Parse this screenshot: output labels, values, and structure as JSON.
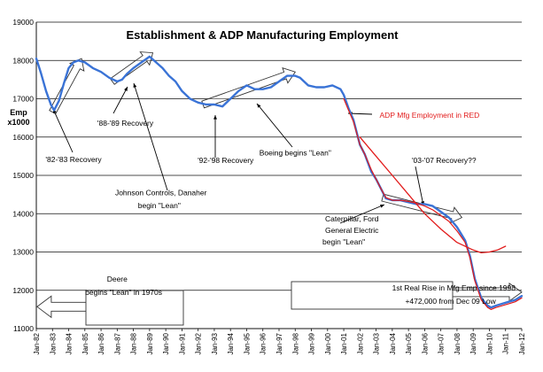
{
  "chart_data": {
    "type": "line",
    "title": "Establishment & ADP Manufacturing Employment",
    "xlabel": "",
    "ylabel": "Emp\nx1000",
    "ylim": [
      11000,
      19000
    ],
    "xlim": [
      1982.0,
      2012.0
    ],
    "yticks": [
      11000,
      12000,
      13000,
      14000,
      15000,
      16000,
      17000,
      18000,
      19000
    ],
    "xtick_labels": [
      "Jan-82",
      "Jan-83",
      "Jan-84",
      "Jan-85",
      "Jan-86",
      "Jan-87",
      "Jan-88",
      "Jan-89",
      "Jan-90",
      "Jan-91",
      "Jan-92",
      "Jan-93",
      "Jan-94",
      "Jan-95",
      "Jan-96",
      "Jan-97",
      "Jan-98",
      "Jan-99",
      "Jan-00",
      "Jan-01",
      "Jan-02",
      "Jan-03",
      "Jan-04",
      "Jan-05",
      "Jan-06",
      "Jan-07",
      "Jan-08",
      "Jan-09",
      "Jan-10",
      "Jan-11",
      "Jan-12"
    ],
    "grid": "horizontal",
    "series": [
      {
        "color": "#3a73d6",
        "points": [
          [
            1982.0,
            18050
          ],
          [
            1982.3,
            17650
          ],
          [
            1982.6,
            17200
          ],
          [
            1982.9,
            16850
          ],
          [
            1983.1,
            16700
          ],
          [
            1983.4,
            16950
          ],
          [
            1983.7,
            17400
          ],
          [
            1984.0,
            17800
          ],
          [
            1984.3,
            17950
          ],
          [
            1984.6,
            18000
          ],
          [
            1985.0,
            17950
          ],
          [
            1985.5,
            17800
          ],
          [
            1986.0,
            17700
          ],
          [
            1986.5,
            17550
          ],
          [
            1987.0,
            17450
          ],
          [
            1987.3,
            17500
          ],
          [
            1987.6,
            17650
          ],
          [
            1988.0,
            17800
          ],
          [
            1988.5,
            17950
          ],
          [
            1989.0,
            18100
          ],
          [
            1989.4,
            17950
          ],
          [
            1989.8,
            17800
          ],
          [
            1990.2,
            17600
          ],
          [
            1990.6,
            17450
          ],
          [
            1991.0,
            17200
          ],
          [
            1991.5,
            17000
          ],
          [
            1992.0,
            16900
          ],
          [
            1992.5,
            16850
          ],
          [
            1993.0,
            16850
          ],
          [
            1993.5,
            16800
          ],
          [
            1994.0,
            17000
          ],
          [
            1994.5,
            17200
          ],
          [
            1995.0,
            17350
          ],
          [
            1995.5,
            17250
          ],
          [
            1996.0,
            17250
          ],
          [
            1996.5,
            17300
          ],
          [
            1997.0,
            17450
          ],
          [
            1997.5,
            17600
          ],
          [
            1998.0,
            17600
          ],
          [
            1998.3,
            17550
          ],
          [
            1998.8,
            17350
          ],
          [
            1999.3,
            17300
          ],
          [
            1999.8,
            17300
          ],
          [
            2000.3,
            17350
          ],
          [
            2000.8,
            17250
          ],
          [
            2001.0,
            17100
          ],
          [
            2001.3,
            16750
          ],
          [
            2001.6,
            16450
          ],
          [
            2002.0,
            15800
          ],
          [
            2002.3,
            15550
          ],
          [
            2002.7,
            15100
          ],
          [
            2003.0,
            14900
          ],
          [
            2003.3,
            14650
          ],
          [
            2003.6,
            14400
          ],
          [
            2004.0,
            14350
          ],
          [
            2004.5,
            14350
          ],
          [
            2005.0,
            14300
          ],
          [
            2005.5,
            14250
          ],
          [
            2006.0,
            14250
          ],
          [
            2006.5,
            14200
          ],
          [
            2007.0,
            14050
          ],
          [
            2007.5,
            13900
          ],
          [
            2008.0,
            13650
          ],
          [
            2008.5,
            13300
          ],
          [
            2008.8,
            12900
          ],
          [
            2009.1,
            12300
          ],
          [
            2009.5,
            11800
          ],
          [
            2009.9,
            11600
          ],
          [
            2010.1,
            11550
          ],
          [
            2010.4,
            11600
          ],
          [
            2010.8,
            11650
          ],
          [
            2011.2,
            11700
          ],
          [
            2011.6,
            11750
          ],
          [
            2012.0,
            11850
          ]
        ]
      },
      {
        "color": "#e21b1b",
        "points": [
          [
            2001.0,
            17000
          ],
          [
            2001.3,
            16700
          ],
          [
            2001.6,
            16400
          ],
          [
            2002.0,
            15800
          ],
          [
            2002.3,
            15550
          ],
          [
            2002.7,
            15150
          ],
          [
            2003.0,
            14900
          ],
          [
            2003.3,
            14650
          ],
          [
            2003.6,
            14420
          ],
          [
            2004.0,
            14350
          ],
          [
            2004.5,
            14350
          ],
          [
            2005.0,
            14320
          ],
          [
            2005.5,
            14270
          ],
          [
            2006.0,
            14200
          ],
          [
            2006.5,
            14100
          ],
          [
            2007.0,
            13950
          ],
          [
            2007.5,
            13800
          ],
          [
            2008.0,
            13550
          ],
          [
            2008.5,
            13250
          ],
          [
            2008.8,
            12850
          ],
          [
            2009.1,
            12250
          ],
          [
            2009.5,
            11750
          ],
          [
            2009.9,
            11550
          ],
          [
            2010.1,
            11500
          ],
          [
            2010.4,
            11550
          ],
          [
            2010.8,
            11600
          ],
          [
            2011.2,
            11650
          ],
          [
            2011.6,
            11700
          ],
          [
            2012.0,
            11800
          ]
        ]
      },
      {
        "color": "#e21b1b",
        "points": [
          [
            2002.0,
            16000
          ],
          [
            2003.0,
            15500
          ],
          [
            2004.0,
            15000
          ],
          [
            2005.0,
            14500
          ],
          [
            2006.0,
            14000
          ],
          [
            2007.0,
            13600
          ],
          [
            2008.0,
            13250
          ],
          [
            2009.0,
            13050
          ],
          [
            2009.5,
            12980
          ],
          [
            2010.0,
            13000
          ],
          [
            2010.5,
            13050
          ],
          [
            2011.0,
            13150
          ]
        ]
      }
    ],
    "annotations": [
      {
        "text": "'82-'83 Recovery",
        "x": 1984.3,
        "y": 15350
      },
      {
        "text": "'88-'89 Recovery",
        "x": 1987.5,
        "y": 16300
      },
      {
        "text": "Johnson Controls, Danaher",
        "x": 1989.7,
        "y": 14480
      },
      {
        "text": "begin \"Lean\"",
        "x": 1989.6,
        "y": 14150
      },
      {
        "text": "'92-'98 Recovery",
        "x": 1993.7,
        "y": 15320
      },
      {
        "text": "Boeing begins \"Lean\"",
        "x": 1998.0,
        "y": 15520
      },
      {
        "text": "ADP Mfg Employment in RED",
        "x": 2006.3,
        "y": 16500
      },
      {
        "text": "'03-'07 Recovery??",
        "x": 2007.2,
        "y": 15320
      },
      {
        "text": "Caterpillar, Ford",
        "x": 2001.5,
        "y": 13800
      },
      {
        "text": "General Electric",
        "x": 2001.5,
        "y": 13500
      },
      {
        "text": "begin \"Lean\"",
        "x": 2001.0,
        "y": 13200
      },
      {
        "text": "Deere",
        "x": 1987.0,
        "y": 12230
      },
      {
        "text": "begins \"Lean\" in 1970s",
        "x": 1987.4,
        "y": 11880
      },
      {
        "text": "1st Real Rise in Mfg Emp since 1998",
        "x": 2007.8,
        "y": 12000
      },
      {
        "text": "+472,000 from Dec 09 Low",
        "x": 2007.6,
        "y": 11650
      }
    ]
  }
}
